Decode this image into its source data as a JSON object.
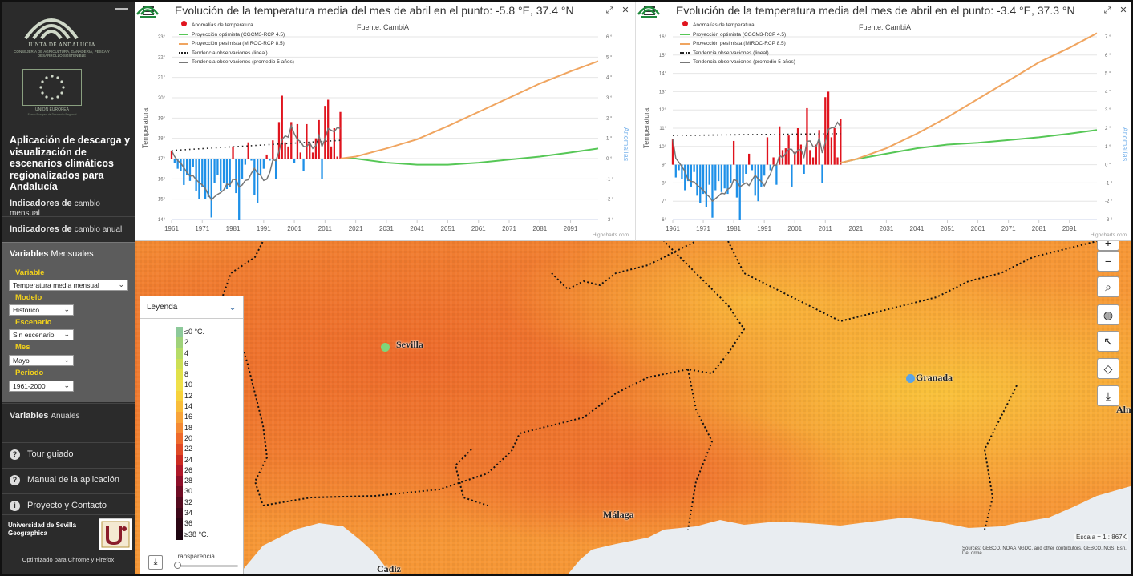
{
  "sidebar": {
    "org_name": "JUNTA DE ANDALUCIA",
    "org_sub": "CONSEJERÍA DE AGRICULTURA, GANADERÍA, PESCA Y DESARROLLO SOSTENIBLE",
    "eu_label": "UNIÓN EUROPEA",
    "eu_sub": "Fondo Europeo de Desarrollo Regional",
    "app_title": "Aplicación de descarga y visualización de escenarios climáticos regionalizados para Andalucía",
    "menu_cambio_mensual_a": "Indicadores de",
    "menu_cambio_mensual_b": "cambio mensual",
    "menu_cambio_anual_a": "Indicadores de",
    "menu_cambio_anual_b": "cambio anual",
    "mensuales_a": "Variables",
    "mensuales_b": "Mensuales",
    "fields": {
      "variable_label": "Variable",
      "variable_value": "Temperatura media mensual",
      "modelo_label": "Modelo",
      "modelo_value": "Histórico",
      "escenario_label": "Escenario",
      "escenario_value": "Sin escenario",
      "mes_label": "Mes",
      "mes_value": "Mayo",
      "periodo_label": "Periodo",
      "periodo_value": "1961-2000"
    },
    "anuales_a": "Variables",
    "anuales_b": "Anuales",
    "tour": "Tour guiado",
    "manual": "Manual de la aplicación",
    "contacto": "Proyecto y Contacto",
    "univ_name": "Universidad de Sevilla Geographica",
    "optimized": "Optimizado para Chrome y Firefox"
  },
  "charts": {
    "source": "Fuente: CambiA",
    "credit": "Highcharts.com",
    "legend": [
      "Anomalías de temperatura",
      "Proyección optimista (CGCM3-RCP 4.5)",
      "Proyección pesimista (MIROC-RCP 8.5)",
      "Tendencia observaciones (lineal)",
      "Tendencia observaciones (promedio 5 años)"
    ],
    "left_axis_title": "Temperatura",
    "right_axis_title": "Anomalías",
    "colors": {
      "pos": "#e0141e",
      "neg": "#1e90e8",
      "optimista": "#56c756",
      "pesimista": "#f0a560",
      "promedio": "#777777"
    }
  },
  "chart_data": [
    {
      "type": "bar",
      "title": "Evolución de la temperatura media del mes de abril en el punto: -5.8 °E, 37.4 °N",
      "x_ticks": [
        "1961",
        "1971",
        "1981",
        "1991",
        "2001",
        "2011",
        "2021",
        "2031",
        "2041",
        "2051",
        "2061",
        "2071",
        "2081",
        "2091"
      ],
      "y_left_ticks": [
        "14°",
        "15°",
        "16°",
        "17°",
        "18°",
        "19°",
        "20°",
        "21°",
        "22°",
        "23°"
      ],
      "y_right_ticks": [
        "-3 °",
        "-2 °",
        "-1 °",
        "0 °",
        "1 °",
        "2 °",
        "3 °",
        "4 °",
        "5 °",
        "6 °"
      ],
      "ylim_left": [
        14,
        23
      ],
      "ylim_right": [
        -3,
        6
      ],
      "years": [
        1961,
        1962,
        1963,
        1964,
        1965,
        1966,
        1967,
        1968,
        1969,
        1970,
        1971,
        1972,
        1973,
        1974,
        1975,
        1976,
        1977,
        1978,
        1979,
        1980,
        1981,
        1982,
        1983,
        1984,
        1985,
        1986,
        1987,
        1988,
        1989,
        1990,
        1991,
        1992,
        1993,
        1994,
        1995,
        1996,
        1997,
        1998,
        1999,
        2000,
        2001,
        2002,
        2003,
        2004,
        2005,
        2006,
        2007,
        2008,
        2009,
        2010,
        2011,
        2012,
        2013,
        2014,
        2015,
        2016
      ],
      "anomalies": [
        0.4,
        -0.2,
        -0.5,
        -0.6,
        -1.3,
        -0.8,
        -1.1,
        -0.4,
        -1.6,
        -2.0,
        -1.4,
        -2.0,
        -1.9,
        -2.9,
        -1.2,
        -0.8,
        -1.6,
        -1.2,
        -1.5,
        -1.4,
        0.6,
        -1.7,
        -3.0,
        -1.0,
        -0.3,
        0.8,
        -0.1,
        -1.8,
        -2.2,
        -0.8,
        -0.5,
        0.2,
        -0.1,
        0.9,
        -1.0,
        1.8,
        3.1,
        0.8,
        0.6,
        1.8,
        -0.2,
        1.7,
        0.3,
        -0.6,
        1.7,
        0.8,
        0.3,
        1.0,
        1.9,
        -1.0,
        2.6,
        2.9,
        0.6,
        1.5,
        0.1,
        2.3
      ],
      "trend_linear": {
        "x": [
          1961,
          2016
        ],
        "y": [
          17.4,
          17.9
        ]
      },
      "optimista": {
        "x": [
          2016,
          2021,
          2031,
          2041,
          2051,
          2061,
          2071,
          2081,
          2091,
          2100
        ],
        "y": [
          17.0,
          17.0,
          16.8,
          16.7,
          16.7,
          16.8,
          16.95,
          17.1,
          17.3,
          17.5
        ]
      },
      "pesimista": {
        "x": [
          2016,
          2021,
          2031,
          2041,
          2051,
          2061,
          2071,
          2081,
          2091,
          2100
        ],
        "y": [
          17.0,
          17.1,
          17.5,
          17.95,
          18.6,
          19.3,
          20.0,
          20.7,
          21.3,
          21.8
        ]
      }
    },
    {
      "type": "bar",
      "title": "Evolución de la temperatura media del mes de abril en el punto: -3.4 °E, 37.3 °N",
      "x_ticks": [
        "1961",
        "1971",
        "1981",
        "1991",
        "2001",
        "2011",
        "2021",
        "2031",
        "2041",
        "2051",
        "2061",
        "2071",
        "2081",
        "2091"
      ],
      "y_left_ticks": [
        "6°",
        "7°",
        "8°",
        "9°",
        "10°",
        "11°",
        "12°",
        "13°",
        "14°",
        "15°",
        "16°"
      ],
      "y_right_ticks": [
        "-3 °",
        "-2 °",
        "-1 °",
        "0 °",
        "1 °",
        "2 °",
        "3 °",
        "4 °",
        "5 °",
        "6 °",
        "7 °"
      ],
      "ylim_left": [
        6,
        16
      ],
      "ylim_right": [
        -3,
        7
      ],
      "years": [
        1961,
        1962,
        1963,
        1964,
        1965,
        1966,
        1967,
        1968,
        1969,
        1970,
        1971,
        1972,
        1973,
        1974,
        1975,
        1976,
        1977,
        1978,
        1979,
        1980,
        1981,
        1982,
        1983,
        1984,
        1985,
        1986,
        1987,
        1988,
        1989,
        1990,
        1991,
        1992,
        1993,
        1994,
        1995,
        1996,
        1997,
        1998,
        1999,
        2000,
        2001,
        2002,
        2003,
        2004,
        2005,
        2006,
        2007,
        2008,
        2009,
        2010,
        2011,
        2012,
        2013,
        2014,
        2015,
        2016
      ],
      "anomalies": [
        1.4,
        -0.7,
        -0.3,
        -0.8,
        -1.4,
        -0.9,
        -1.2,
        -0.4,
        -1.7,
        -2.1,
        -1.6,
        -2.3,
        -1.1,
        -2.9,
        -1.4,
        -0.9,
        -1.5,
        -1.3,
        -1.6,
        -1.0,
        1.3,
        -1.8,
        -3.0,
        -1.0,
        -0.5,
        0.6,
        -0.3,
        -1.7,
        -2.0,
        -1.2,
        -0.6,
        1.5,
        -0.3,
        0.4,
        -1.1,
        2.1,
        0.8,
        0.9,
        1.6,
        -1.2,
        0.7,
        2.0,
        1.1,
        -0.5,
        3.1,
        0.8,
        0.4,
        1.1,
        1.9,
        -1.0,
        3.7,
        4.0,
        1.5,
        2.0,
        0.4,
        2.5
      ],
      "trend_linear": {
        "x": [
          1961,
          2016
        ],
        "y": [
          10.6,
          10.7
        ]
      },
      "optimista": {
        "x": [
          2016,
          2021,
          2031,
          2041,
          2051,
          2061,
          2071,
          2081,
          2091,
          2100
        ],
        "y": [
          9.1,
          9.3,
          9.6,
          9.9,
          10.1,
          10.2,
          10.35,
          10.5,
          10.7,
          10.9
        ]
      },
      "pesimista": {
        "x": [
          2016,
          2021,
          2031,
          2041,
          2051,
          2061,
          2071,
          2081,
          2091,
          2100
        ],
        "y": [
          9.1,
          9.3,
          9.9,
          10.7,
          11.6,
          12.6,
          13.6,
          14.6,
          15.4,
          16.2
        ]
      }
    }
  ],
  "map": {
    "cities": {
      "sevilla": "Sevilla",
      "granada": "Granada",
      "malaga": "Málaga",
      "cadiz": "Cádiz",
      "almeria": "Alm"
    },
    "scale": "Escala = 1 : 867K",
    "sources": "Sources: GEBCO, NOAA NGDC, and other contributors, GEBCO, NGS, Esri, DeLorme",
    "legend_title": "Leyenda",
    "legend_items": [
      "≤0 °C.",
      "2",
      "4",
      "6",
      "8",
      "10",
      "12",
      "14",
      "16",
      "18",
      "20",
      "22",
      "24",
      "26",
      "28",
      "30",
      "32",
      "34",
      "36",
      "≥38 °C."
    ],
    "legend_colors": [
      "#8dc99a",
      "#9fd27a",
      "#b5dc67",
      "#ccdf55",
      "#e0e14a",
      "#f0e04a",
      "#f7d23c",
      "#f9bd3a",
      "#f8a43a",
      "#f48a35",
      "#ee6a2c",
      "#e04a26",
      "#cc2b22",
      "#b0182a",
      "#8e0f2a",
      "#6f0c24",
      "#540a1f",
      "#3e081a",
      "#2c0614",
      "#1c0410"
    ],
    "transparency": "Transparencia"
  }
}
